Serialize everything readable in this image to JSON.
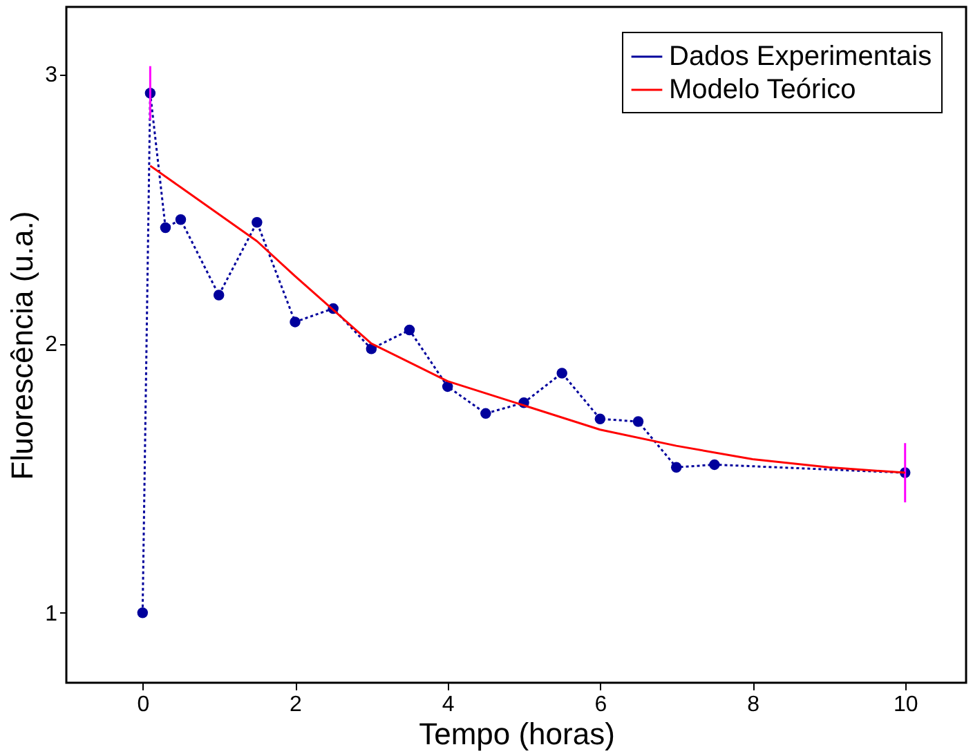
{
  "chart_data": {
    "type": "line",
    "xlabel": "Tempo (horas)",
    "ylabel": "Fluorescência (u.a.)",
    "xlim": [
      -1,
      10.8
    ],
    "ylim": [
      0.74,
      3.25
    ],
    "xticks": [
      0,
      2,
      4,
      6,
      8,
      10
    ],
    "yticks": [
      {
        "value": 1,
        "label": "1"
      },
      {
        "value": 2,
        "label": "2"
      },
      {
        "value": 3,
        "label": "3"
      }
    ],
    "grid": false,
    "legend": "top right",
    "series": [
      {
        "name": "Dados Experimentais",
        "color": "#00009c",
        "line_style": "dotted",
        "marker": "circle",
        "x": [
          0,
          0.1,
          0.3,
          0.5,
          1,
          1.5,
          2,
          2.5,
          3,
          3.5,
          4,
          4.5,
          5,
          5.5,
          6,
          6.5,
          7,
          7.5,
          10
        ],
        "values": [
          1.0,
          2.93,
          2.43,
          2.46,
          2.18,
          2.45,
          2.08,
          2.13,
          1.98,
          2.05,
          1.84,
          1.74,
          1.78,
          1.89,
          1.72,
          1.71,
          1.54,
          1.55,
          1.52
        ],
        "errors": [
          null,
          0.1,
          null,
          null,
          null,
          null,
          null,
          null,
          null,
          null,
          null,
          null,
          null,
          null,
          null,
          null,
          null,
          null,
          0.11
        ]
      },
      {
        "name": "Modelo Teórico",
        "color": "#ff0000",
        "line_style": "solid",
        "marker": "none",
        "x": [
          0.1,
          0.5,
          1,
          1.5,
          2,
          3,
          4,
          5,
          6,
          7,
          8,
          9,
          10
        ],
        "values": [
          2.66,
          2.58,
          2.48,
          2.38,
          2.25,
          2.0,
          1.86,
          1.77,
          1.68,
          1.62,
          1.57,
          1.54,
          1.52
        ]
      }
    ]
  }
}
